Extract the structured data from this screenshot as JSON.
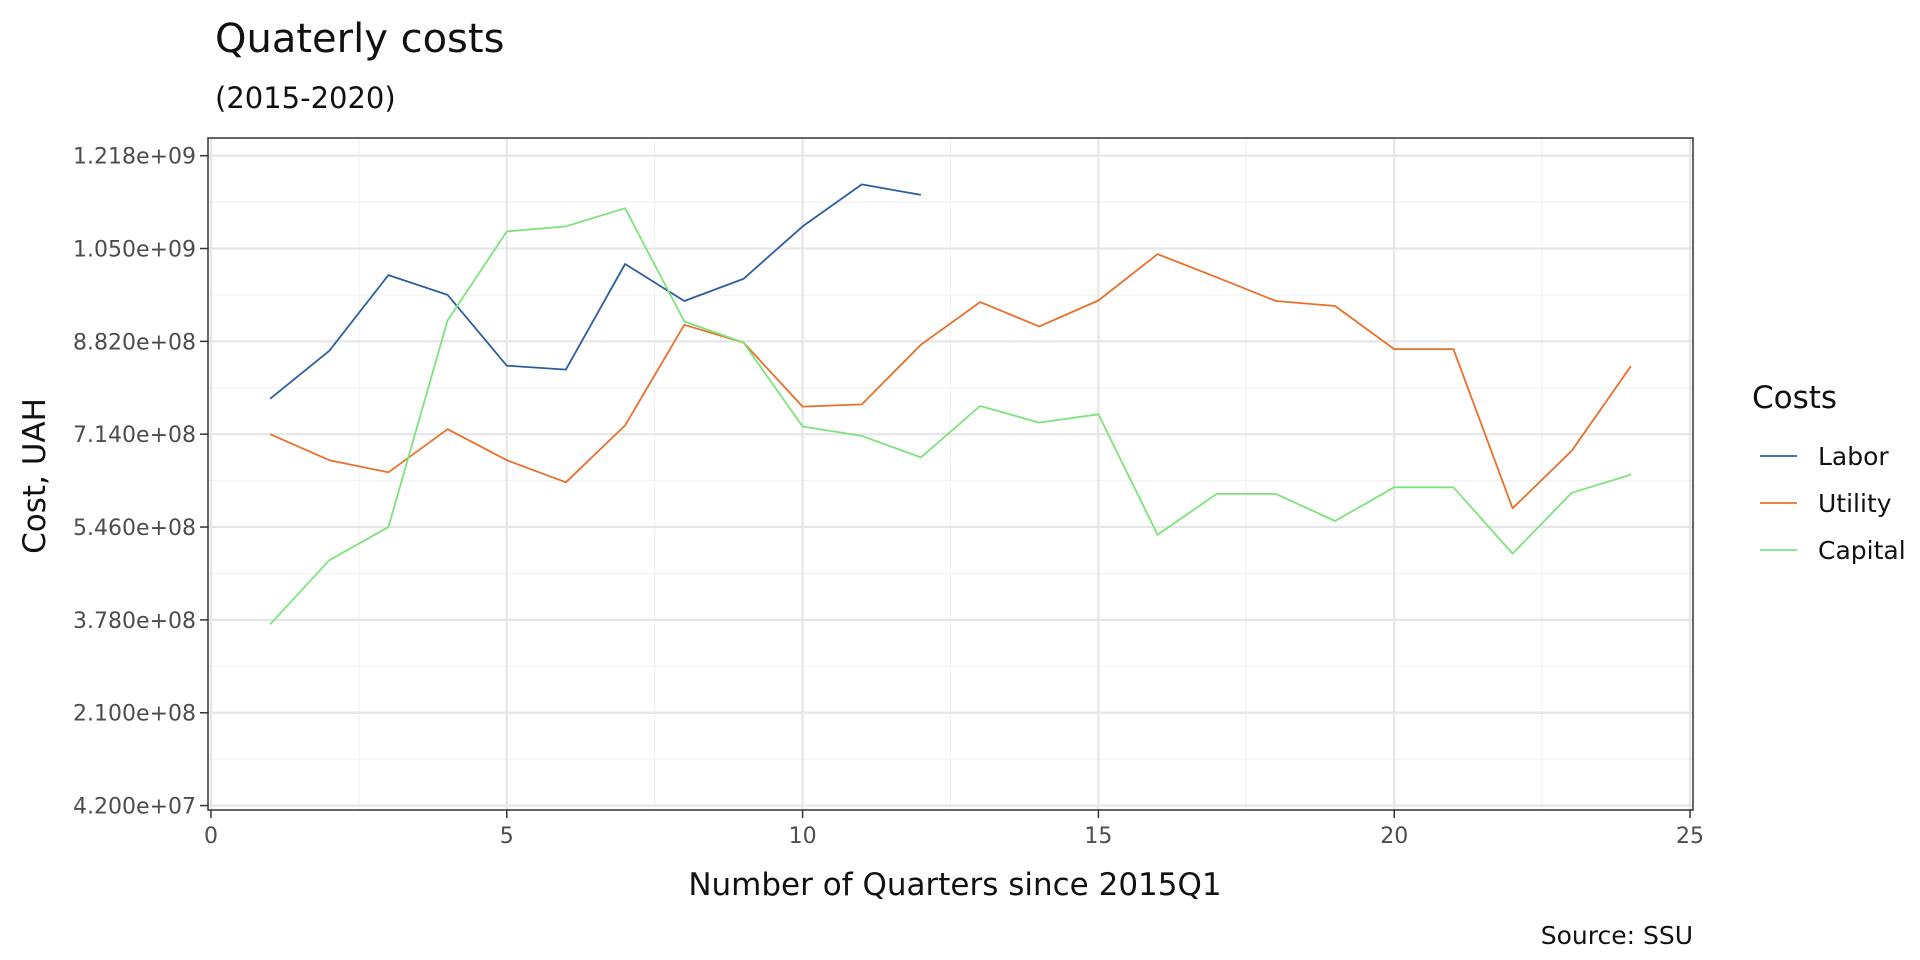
{
  "chart_data": {
    "type": "line",
    "title": "Quaterly costs",
    "subtitle": "(2015-2020)",
    "xlabel": "Number of Quarters since 2015Q1",
    "ylabel": "Cost, UAH",
    "caption": "Source: SSU",
    "legend_title": "Costs",
    "legend_position": "right",
    "grid": true,
    "xlim": [
      -0.05,
      25.05
    ],
    "ylim": [
      34000000.0,
      1250000000.0
    ],
    "xticks": [
      0,
      5,
      10,
      15,
      20,
      25
    ],
    "xtick_labels": [
      "0",
      "5",
      "10",
      "15",
      "20",
      "25"
    ],
    "yticks": [
      42000000,
      210000000,
      378000000,
      546000000,
      714000000,
      882000000,
      1050000000,
      1218000000
    ],
    "ytick_labels": [
      "4.200e+07",
      "2.100e+08",
      "3.780e+08",
      "5.460e+08",
      "7.140e+08",
      "8.820e+08",
      "1.050e+09",
      "1.218e+09"
    ],
    "series": [
      {
        "name": "Labor",
        "color": "#2c5f9e",
        "x": [
          1,
          2,
          3,
          4,
          5,
          6,
          7,
          8,
          9,
          10,
          11,
          12
        ],
        "y": [
          778000000,
          865000000,
          1002000000,
          966000000,
          838000000,
          831000000,
          1022000000,
          955000000,
          995000000,
          1090000000,
          1166000000,
          1147000000
        ]
      },
      {
        "name": "Utility",
        "color": "#e8702a",
        "x": [
          1,
          2,
          3,
          4,
          5,
          6,
          7,
          8,
          9,
          10,
          11,
          12,
          13,
          14,
          15,
          16,
          17,
          18,
          19,
          20,
          21,
          22,
          23,
          24
        ],
        "y": [
          714000000,
          667000000,
          645000000,
          723000000,
          667000000,
          627000000,
          730000000,
          912000000,
          880000000,
          764000000,
          768000000,
          876000000,
          953000000,
          909000000,
          956000000,
          1040000000,
          998000000,
          955000000,
          946000000,
          868000000,
          868000000,
          580000000,
          684000000,
          837000000
        ]
      },
      {
        "name": "Capital",
        "color": "#7de37d",
        "x": [
          1,
          2,
          3,
          4,
          5,
          6,
          7,
          8,
          9,
          10,
          11,
          12,
          13,
          14,
          15,
          16,
          17,
          18,
          19,
          20,
          21,
          22,
          23,
          24
        ],
        "y": [
          370000000,
          486000000,
          546000000,
          920000000,
          1081000000,
          1090000000,
          1123000000,
          918000000,
          880000000,
          728000000,
          711000000,
          672000000,
          765000000,
          735000000,
          750000000,
          532000000,
          606000000,
          606000000,
          557000000,
          618000000,
          618000000,
          498000000,
          608000000,
          641000000
        ]
      }
    ]
  }
}
